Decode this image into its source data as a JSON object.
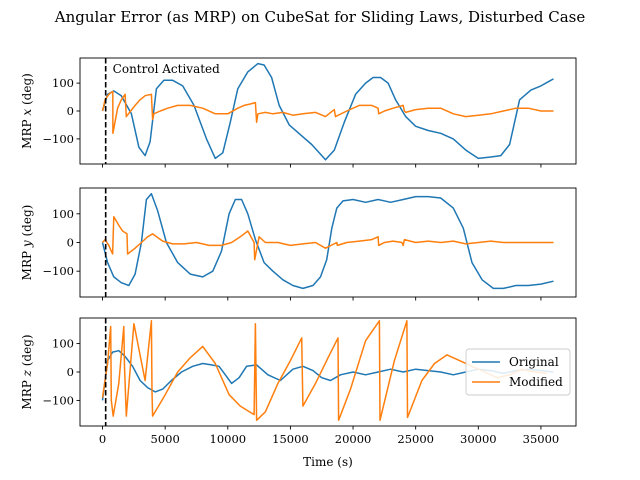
{
  "chart_data": {
    "type": "line",
    "title": "Angular Error (as MRP) on CubeSat for Sliding Laws, Disturbed Case",
    "xlabel": "Time (s)",
    "xlim": [
      -1800,
      37800
    ],
    "xticks": [
      0,
      5000,
      10000,
      15000,
      20000,
      25000,
      30000,
      35000
    ],
    "xticklabels": [
      "0",
      "5000",
      "10000",
      "15000",
      "20000",
      "25000",
      "30000",
      "35000"
    ],
    "control_activated_time": 250,
    "annotation": "Control Activated",
    "legend": {
      "placement": "center-right",
      "entries": [
        "Original",
        "Modified"
      ]
    },
    "colors": {
      "Original": "#1f77b4",
      "Modified": "#ff7f0e",
      "marker": "#000000"
    },
    "subplots": [
      {
        "ylabel_prefix": "MRP ",
        "ylabel_var": "x",
        "ylabel_suffix": " (deg)",
        "ylim": [
          -190,
          190
        ],
        "yticks": [
          100,
          0,
          -100
        ],
        "yticklabels": [
          "100",
          "0",
          "−100"
        ],
        "series": [
          {
            "name": "Original",
            "x": [
              0,
              400,
              900,
              1500,
              2300,
              2900,
              3400,
              3800,
              4300,
              4900,
              5600,
              6400,
              7300,
              8300,
              9000,
              9600,
              10200,
              10800,
              11600,
              12400,
              12900,
              13500,
              14100,
              14900,
              15800,
              16700,
              17300,
              17800,
              18500,
              19300,
              20200,
              21000,
              21600,
              22200,
              22800,
              23400,
              24200,
              25000,
              26000,
              27000,
              28000,
              29000,
              30000,
              31000,
              31800,
              32500,
              33300,
              34200,
              35000,
              35600,
              36000
            ],
            "y": [
              0,
              60,
              72,
              55,
              -10,
              -130,
              -160,
              -110,
              80,
              110,
              110,
              90,
              20,
              -100,
              -170,
              -150,
              -40,
              80,
              140,
              170,
              165,
              120,
              20,
              -50,
              -85,
              -120,
              -150,
              -175,
              -140,
              -40,
              60,
              100,
              120,
              120,
              100,
              40,
              -20,
              -55,
              -70,
              -80,
              -100,
              -140,
              -170,
              -165,
              -160,
              -120,
              40,
              75,
              90,
              105,
              115
            ]
          },
          {
            "name": "Modified",
            "x": [
              0,
              200,
              500,
              820,
              830,
              1200,
              1500,
              1800,
              1900,
              2600,
              3000,
              3400,
              3900,
              4000,
              4100,
              4600,
              5200,
              6000,
              7000,
              8000,
              9000,
              10000,
              10800,
              11300,
              11800,
              12200,
              12300,
              12400,
              13000,
              13600,
              14400,
              15200,
              16000,
              17000,
              17800,
              18500,
              18600,
              19500,
              20500,
              21500,
              22000,
              22050,
              22500,
              23200,
              24000,
              24100,
              24200,
              25000,
              26000,
              27000,
              28000,
              29000,
              30000,
              31000,
              32000,
              33000,
              34000,
              35000,
              36000
            ],
            "y": [
              0,
              40,
              60,
              70,
              -80,
              10,
              40,
              60,
              -20,
              20,
              40,
              55,
              60,
              -30,
              -10,
              0,
              10,
              20,
              20,
              10,
              -10,
              -10,
              10,
              20,
              25,
              30,
              -40,
              -10,
              -5,
              -10,
              -5,
              -15,
              -10,
              -5,
              -20,
              5,
              -20,
              0,
              20,
              20,
              10,
              -10,
              0,
              10,
              20,
              0,
              -5,
              5,
              10,
              10,
              -10,
              -20,
              -15,
              -10,
              0,
              10,
              10,
              0,
              0
            ]
          }
        ]
      },
      {
        "ylabel_prefix": "MRP ",
        "ylabel_var": "y",
        "ylabel_suffix": " (deg)",
        "ylim": [
          -190,
          190
        ],
        "yticks": [
          100,
          0,
          -100
        ],
        "yticklabels": [
          "100",
          "0",
          "−100"
        ],
        "series": [
          {
            "name": "Original",
            "x": [
              0,
              400,
              900,
              1500,
              2100,
              2600,
              3100,
              3500,
              3900,
              4400,
              5100,
              6000,
              7000,
              8000,
              8800,
              9500,
              10100,
              10600,
              11100,
              11600,
              12200,
              12900,
              13600,
              14400,
              15200,
              16000,
              16800,
              17400,
              17900,
              18300,
              18700,
              19200,
              20000,
              21000,
              22000,
              23000,
              24000,
              25000,
              26000,
              27000,
              28000,
              28800,
              29500,
              30300,
              31200,
              32000,
              33000,
              34000,
              35000,
              36000
            ],
            "y": [
              0,
              -70,
              -120,
              -140,
              -150,
              -110,
              0,
              150,
              170,
              110,
              0,
              -70,
              -110,
              -120,
              -100,
              -30,
              100,
              150,
              150,
              100,
              10,
              -70,
              -100,
              -130,
              -150,
              -160,
              -150,
              -120,
              -60,
              50,
              120,
              145,
              150,
              140,
              150,
              140,
              150,
              160,
              160,
              155,
              120,
              50,
              -70,
              -130,
              -160,
              -160,
              -150,
              -150,
              -145,
              -135
            ]
          },
          {
            "name": "Modified",
            "x": [
              0,
              200,
              500,
              800,
              900,
              1300,
              1600,
              1950,
              2000,
              2600,
              3100,
              3600,
              4000,
              4800,
              5600,
              6500,
              7500,
              8500,
              9500,
              10300,
              11000,
              11600,
              12100,
              12150,
              12500,
              13000,
              14000,
              15000,
              16000,
              17000,
              17800,
              18700,
              18750,
              19500,
              20500,
              21500,
              22000,
              22050,
              22500,
              23200,
              23900,
              24000,
              24100,
              25000,
              26000,
              27000,
              28000,
              29000,
              30000,
              31000,
              32000,
              33000,
              34000,
              35000,
              36000
            ],
            "y": [
              0,
              10,
              -10,
              -40,
              90,
              60,
              40,
              30,
              -40,
              -20,
              0,
              20,
              30,
              5,
              -5,
              -5,
              0,
              -10,
              -10,
              0,
              20,
              40,
              0,
              -60,
              20,
              0,
              0,
              -10,
              -5,
              0,
              -20,
              0,
              -10,
              0,
              5,
              10,
              20,
              -10,
              0,
              5,
              0,
              -10,
              10,
              0,
              5,
              0,
              5,
              -5,
              0,
              5,
              0,
              0,
              0,
              0,
              0
            ]
          }
        ]
      },
      {
        "ylabel_prefix": "MRP ",
        "ylabel_var": "z",
        "ylabel_suffix": " (deg)",
        "ylim": [
          -190,
          190
        ],
        "yticks": [
          100,
          0,
          -100
        ],
        "yticklabels": [
          "100",
          "0",
          "−100"
        ],
        "series": [
          {
            "name": "Original",
            "x": [
              0,
              400,
              800,
              1300,
              1800,
              2400,
              3000,
              3600,
              4200,
              4800,
              5500,
              6300,
              7200,
              8000,
              8700,
              9300,
              9800,
              10300,
              10900,
              11500,
              12300,
              13200,
              14200,
              15200,
              16000,
              16800,
              17500,
              18200,
              19000,
              20000,
              21000,
              22000,
              23000,
              24000,
              25000,
              26000,
              27000,
              28000,
              29000,
              30000,
              31000,
              32000,
              33000,
              34000,
              35000,
              36000
            ],
            "y": [
              -100,
              40,
              70,
              75,
              55,
              20,
              -30,
              -55,
              -70,
              -60,
              -30,
              0,
              20,
              30,
              25,
              20,
              -10,
              -40,
              -20,
              20,
              25,
              -10,
              -30,
              10,
              20,
              5,
              -20,
              -30,
              -10,
              0,
              -10,
              0,
              10,
              0,
              10,
              5,
              0,
              -10,
              0,
              10,
              5,
              -5,
              5,
              10,
              5,
              0
            ]
          },
          {
            "name": "Modified",
            "x": [
              0,
              400,
              650,
              700,
              850,
              1300,
              1700,
              1750,
              1900,
              2500,
              3400,
              3900,
              3950,
              4000,
              5000,
              6000,
              7000,
              8000,
              9000,
              10100,
              11000,
              12100,
              12200,
              12300,
              13000,
              14000,
              15000,
              15900,
              16000,
              17000,
              18000,
              18800,
              18850,
              19800,
              21000,
              22100,
              22150,
              23300,
              24300,
              24350,
              25500,
              26500,
              27500,
              28500,
              29500,
              30500,
              31500,
              32500,
              33500,
              34500,
              35500
            ],
            "y": [
              -90,
              30,
              160,
              -100,
              -155,
              -40,
              160,
              20,
              -155,
              170,
              -30,
              180,
              -70,
              -155,
              -80,
              0,
              50,
              90,
              30,
              -80,
              -120,
              -150,
              170,
              -170,
              -140,
              -40,
              40,
              120,
              -120,
              -40,
              50,
              120,
              -170,
              -60,
              110,
              180,
              -170,
              40,
              180,
              -160,
              -30,
              30,
              60,
              40,
              20,
              0,
              -20,
              -10,
              10,
              0,
              -5
            ]
          }
        ]
      }
    ]
  }
}
